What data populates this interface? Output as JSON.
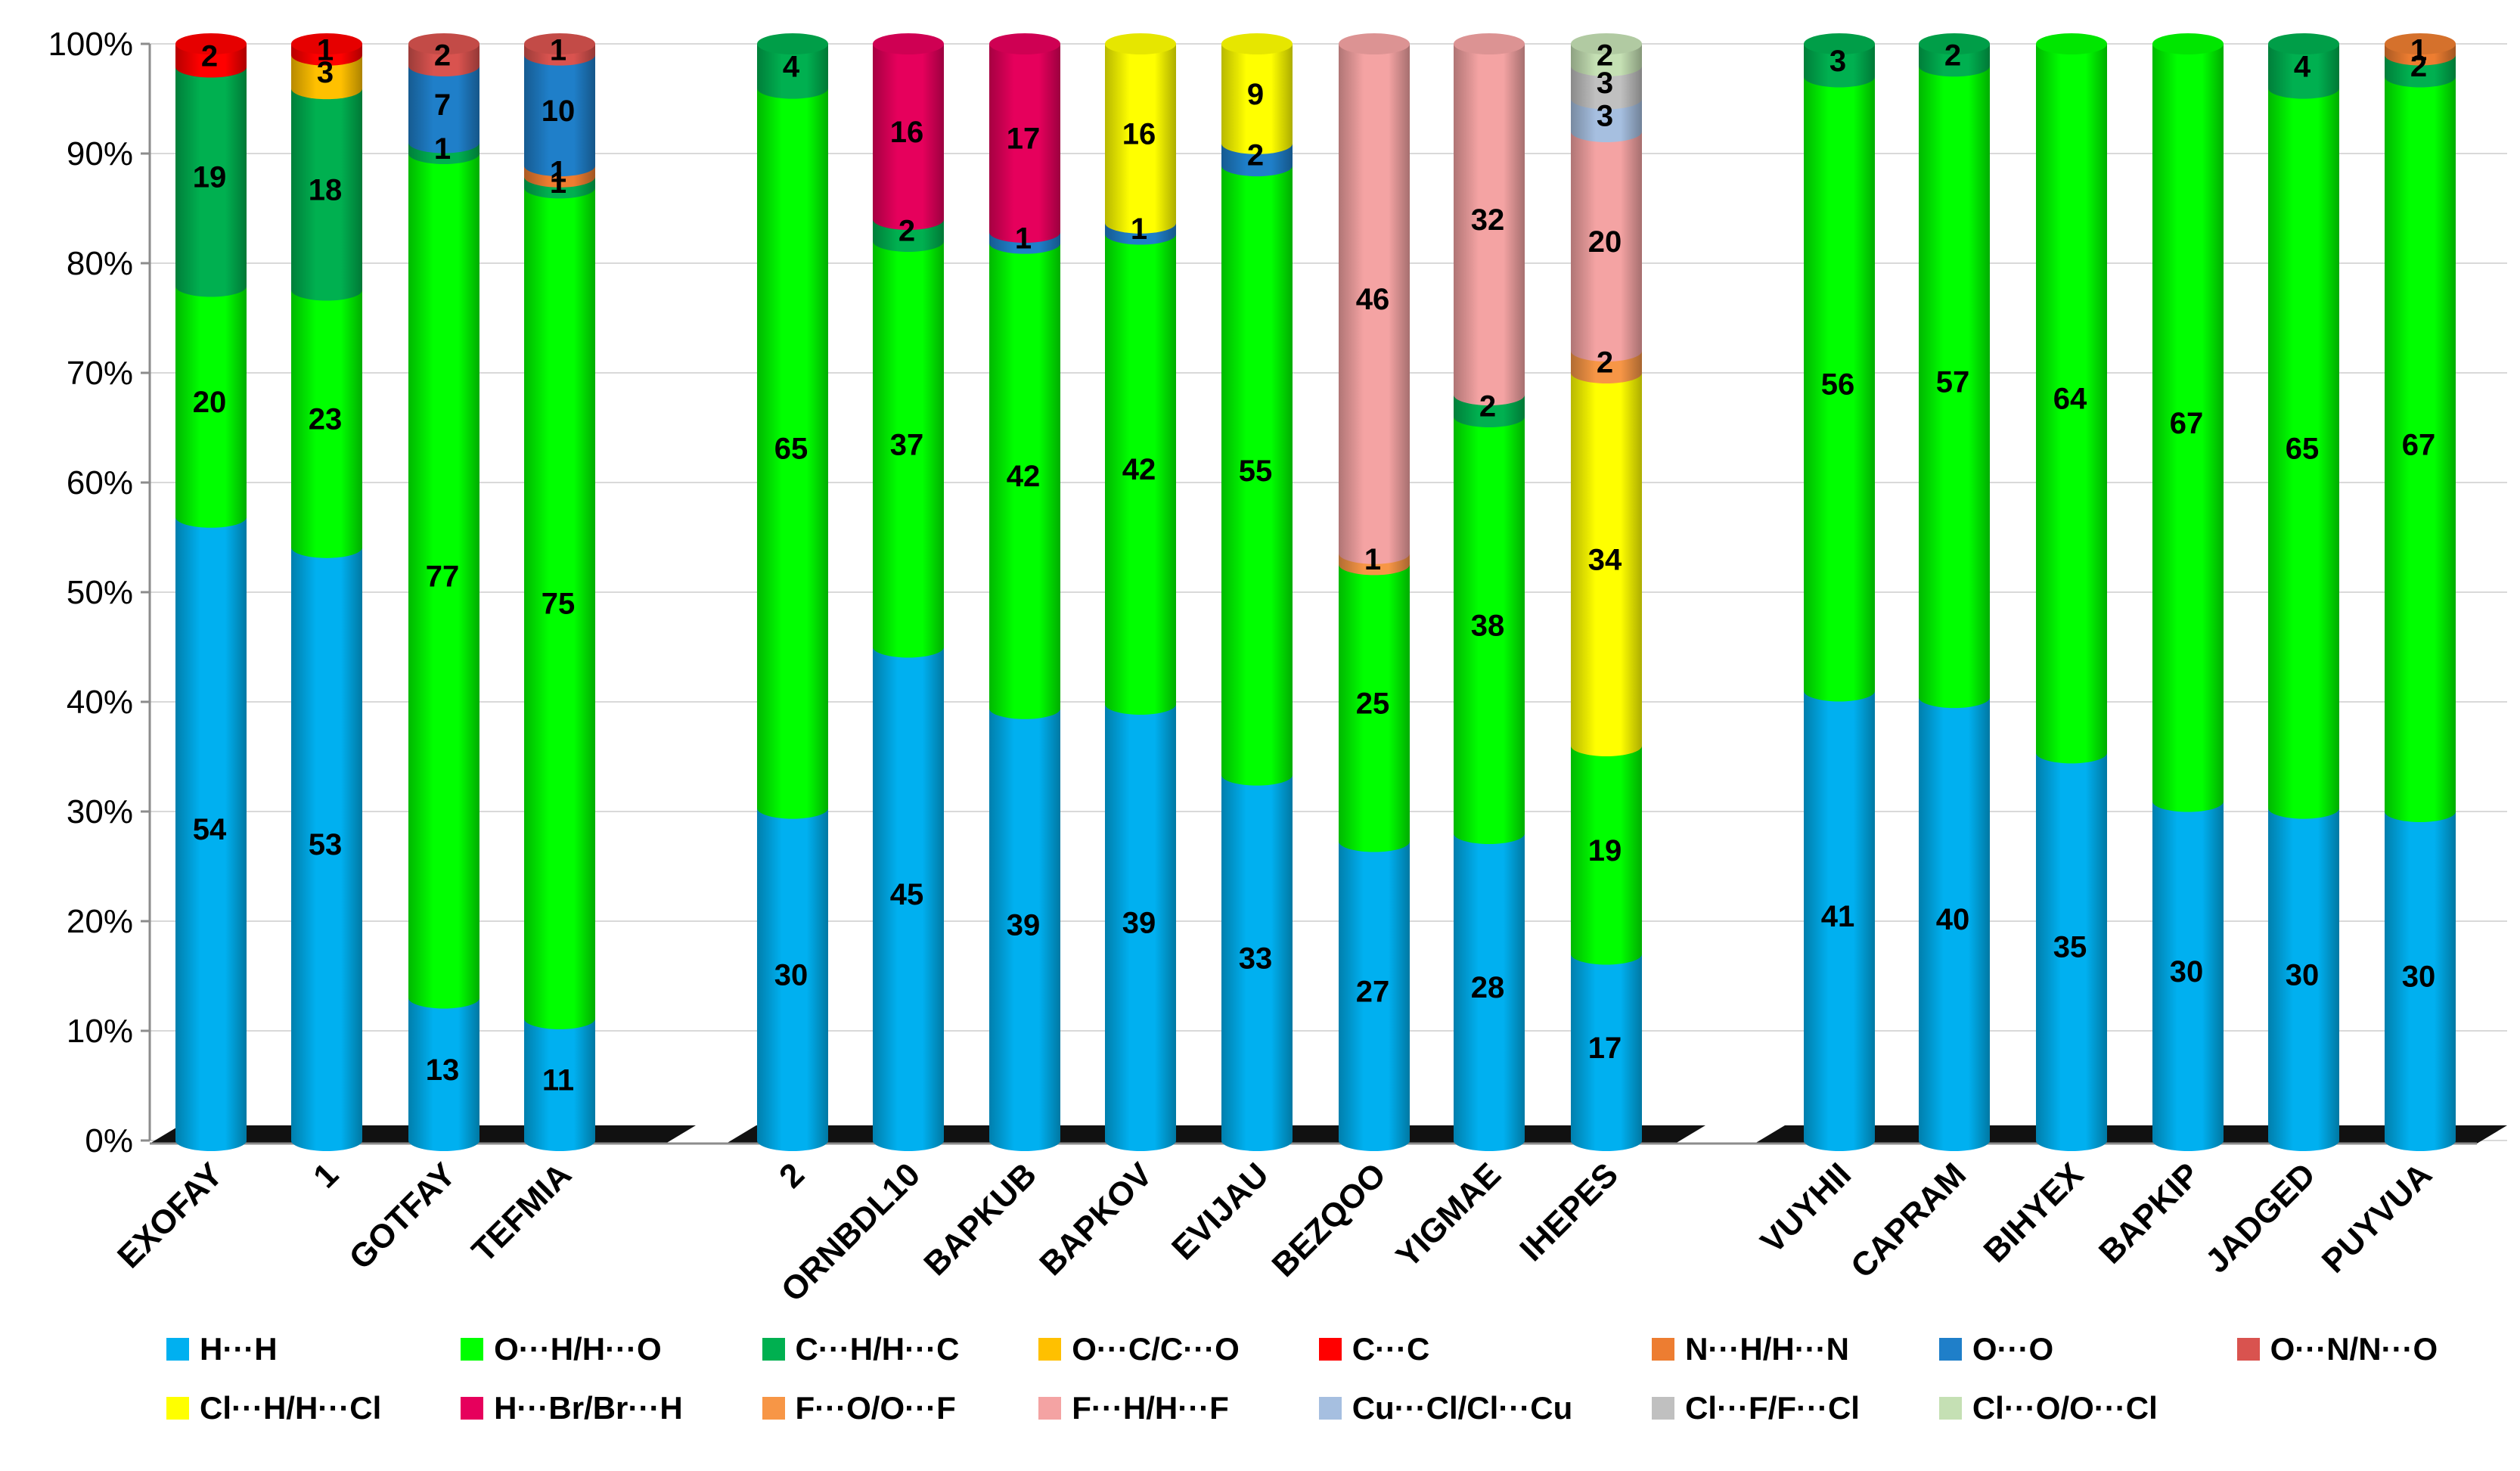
{
  "chart_data": {
    "type": "bar",
    "stacked": "percent",
    "ylim": [
      0,
      100
    ],
    "yticks": [
      "0%",
      "10%",
      "20%",
      "30%",
      "40%",
      "50%",
      "60%",
      "70%",
      "80%",
      "90%",
      "100%"
    ],
    "categories": [
      "EXOFAY",
      "1",
      "GOTFAY",
      "TEFMIA",
      "2",
      "ORNBDL10",
      "BAPKUB",
      "BAPKOV",
      "EVIJAU",
      "BEZQOO",
      "YIGMAE",
      "IHEPES",
      "VUYHII",
      "CAPRAM",
      "BIHYEX",
      "BAPKIP",
      "JADGED",
      "PUYVUA"
    ],
    "series": [
      {
        "name": "H···H",
        "color": "#00B0F0",
        "values": [
          54,
          53,
          13,
          11,
          30,
          45,
          39,
          39,
          33,
          27,
          28,
          17,
          41,
          40,
          35,
          30,
          30,
          30
        ]
      },
      {
        "name": "O···H/H···O",
        "color": "#00FF00",
        "values": [
          20,
          23,
          77,
          75,
          65,
          37,
          42,
          42,
          55,
          25,
          38,
          19,
          56,
          57,
          64,
          67,
          65,
          67
        ]
      },
      {
        "name": "C···H/H···C",
        "color": "#00B050",
        "values": [
          19,
          18,
          1,
          1,
          4,
          2,
          0,
          0,
          0,
          0,
          2,
          0,
          3,
          2,
          0,
          0,
          4,
          2
        ]
      },
      {
        "name": "O···C/C···O",
        "color": "#FFC000",
        "values": [
          0,
          3,
          0,
          0,
          0,
          0,
          0,
          0,
          0,
          0,
          0,
          0,
          0,
          0,
          0,
          0,
          0,
          0
        ]
      },
      {
        "name": "C···C",
        "color": "#FF0000",
        "values": [
          2,
          1,
          0,
          0,
          0,
          0,
          0,
          0,
          0,
          0,
          0,
          0,
          0,
          0,
          0,
          0,
          0,
          0
        ]
      },
      {
        "name": "N···H/H···N",
        "color": "#ED7D31",
        "values": [
          0,
          0,
          0,
          1,
          0,
          0,
          0,
          0,
          0,
          0,
          0,
          0,
          0,
          0,
          0,
          0,
          0,
          1
        ]
      },
      {
        "name": "O···O",
        "color": "#1F7FC9",
        "values": [
          0,
          0,
          7,
          10,
          0,
          0,
          1,
          1,
          2,
          0,
          0,
          0,
          0,
          0,
          0,
          0,
          0,
          0
        ]
      },
      {
        "name": "O···N/N···O",
        "color": "#D9534F",
        "values": [
          0,
          0,
          2,
          1,
          0,
          0,
          0,
          0,
          0,
          0,
          0,
          0,
          0,
          0,
          0,
          0,
          0,
          0
        ]
      },
      {
        "name": "Cl···H/H···Cl",
        "color": "#FFFF00",
        "values": [
          0,
          0,
          0,
          0,
          0,
          0,
          0,
          16,
          9,
          0,
          0,
          34,
          0,
          0,
          0,
          0,
          0,
          0
        ]
      },
      {
        "name": "H···Br/Br···H",
        "color": "#E6005C",
        "values": [
          0,
          0,
          0,
          0,
          0,
          16,
          17,
          0,
          0,
          0,
          0,
          0,
          0,
          0,
          0,
          0,
          0,
          0
        ]
      },
      {
        "name": "F···O/O···F",
        "color": "#F79646",
        "values": [
          0,
          0,
          0,
          0,
          0,
          0,
          0,
          0,
          0,
          1,
          0,
          2,
          0,
          0,
          0,
          0,
          0,
          0
        ]
      },
      {
        "name": "F···H/H···F",
        "color": "#F4A3A3",
        "values": [
          0,
          0,
          0,
          0,
          0,
          0,
          0,
          0,
          0,
          46,
          32,
          20,
          0,
          0,
          0,
          0,
          0,
          0
        ]
      },
      {
        "name": "Cu···Cl/Cl···Cu",
        "color": "#A6BFE0",
        "values": [
          0,
          0,
          0,
          0,
          0,
          0,
          0,
          0,
          0,
          0,
          0,
          3,
          0,
          0,
          0,
          0,
          0,
          0
        ]
      },
      {
        "name": "Cl···F/F···Cl",
        "color": "#C0C0C0",
        "values": [
          0,
          0,
          0,
          0,
          0,
          0,
          0,
          0,
          0,
          0,
          0,
          3,
          0,
          0,
          0,
          0,
          0,
          0
        ]
      },
      {
        "name": "Cl···O/O···Cl",
        "color": "#C5E0B4",
        "values": [
          0,
          0,
          0,
          0,
          0,
          0,
          0,
          0,
          0,
          0,
          0,
          2,
          0,
          0,
          0,
          0,
          0,
          0
        ]
      }
    ],
    "legend_position": "bottom",
    "grid": true
  }
}
